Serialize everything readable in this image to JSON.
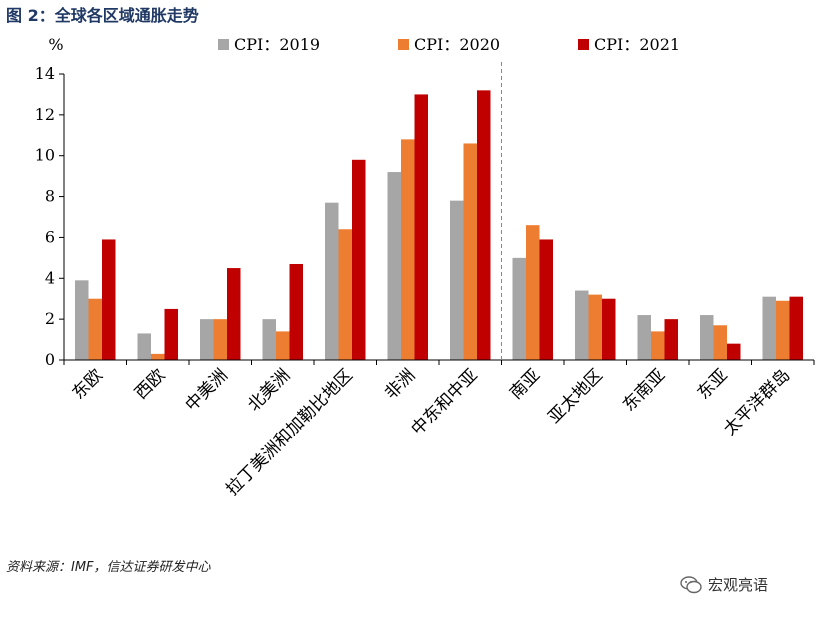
{
  "figure_title": "图 2：全球各区域通胀走势",
  "source_note": "资料来源：IMF，信达证券研发中心",
  "watermark": "宏观亮语",
  "chart_data": {
    "type": "bar",
    "ylabel": "%",
    "ylim": [
      0,
      14
    ],
    "yticks": [
      0,
      2,
      4,
      6,
      8,
      10,
      12,
      14
    ],
    "legend_position": "top",
    "categories": [
      "东欧",
      "西欧",
      "中美洲",
      "北美洲",
      "拉丁美洲和加勒比地区",
      "非洲",
      "中东和中亚",
      "南亚",
      "亚太地区",
      "东南亚",
      "东亚",
      "太平洋群岛"
    ],
    "series": [
      {
        "name": "CPI：2019",
        "color": "#a6a6a6",
        "values": [
          3.9,
          1.3,
          2.0,
          2.0,
          7.7,
          9.2,
          7.8,
          5.0,
          3.4,
          2.2,
          2.2,
          3.1
        ]
      },
      {
        "name": "CPI：2020",
        "color": "#ed7d31",
        "values": [
          3.0,
          0.3,
          2.0,
          1.4,
          6.4,
          10.8,
          10.6,
          6.6,
          3.2,
          1.4,
          1.7,
          2.9
        ]
      },
      {
        "name": "CPI：2021",
        "color": "#c00000",
        "values": [
          5.9,
          2.5,
          4.5,
          4.7,
          9.8,
          13.0,
          13.2,
          5.9,
          3.0,
          2.0,
          0.8,
          3.1
        ]
      }
    ],
    "divider_after_category": "中东和中亚"
  }
}
